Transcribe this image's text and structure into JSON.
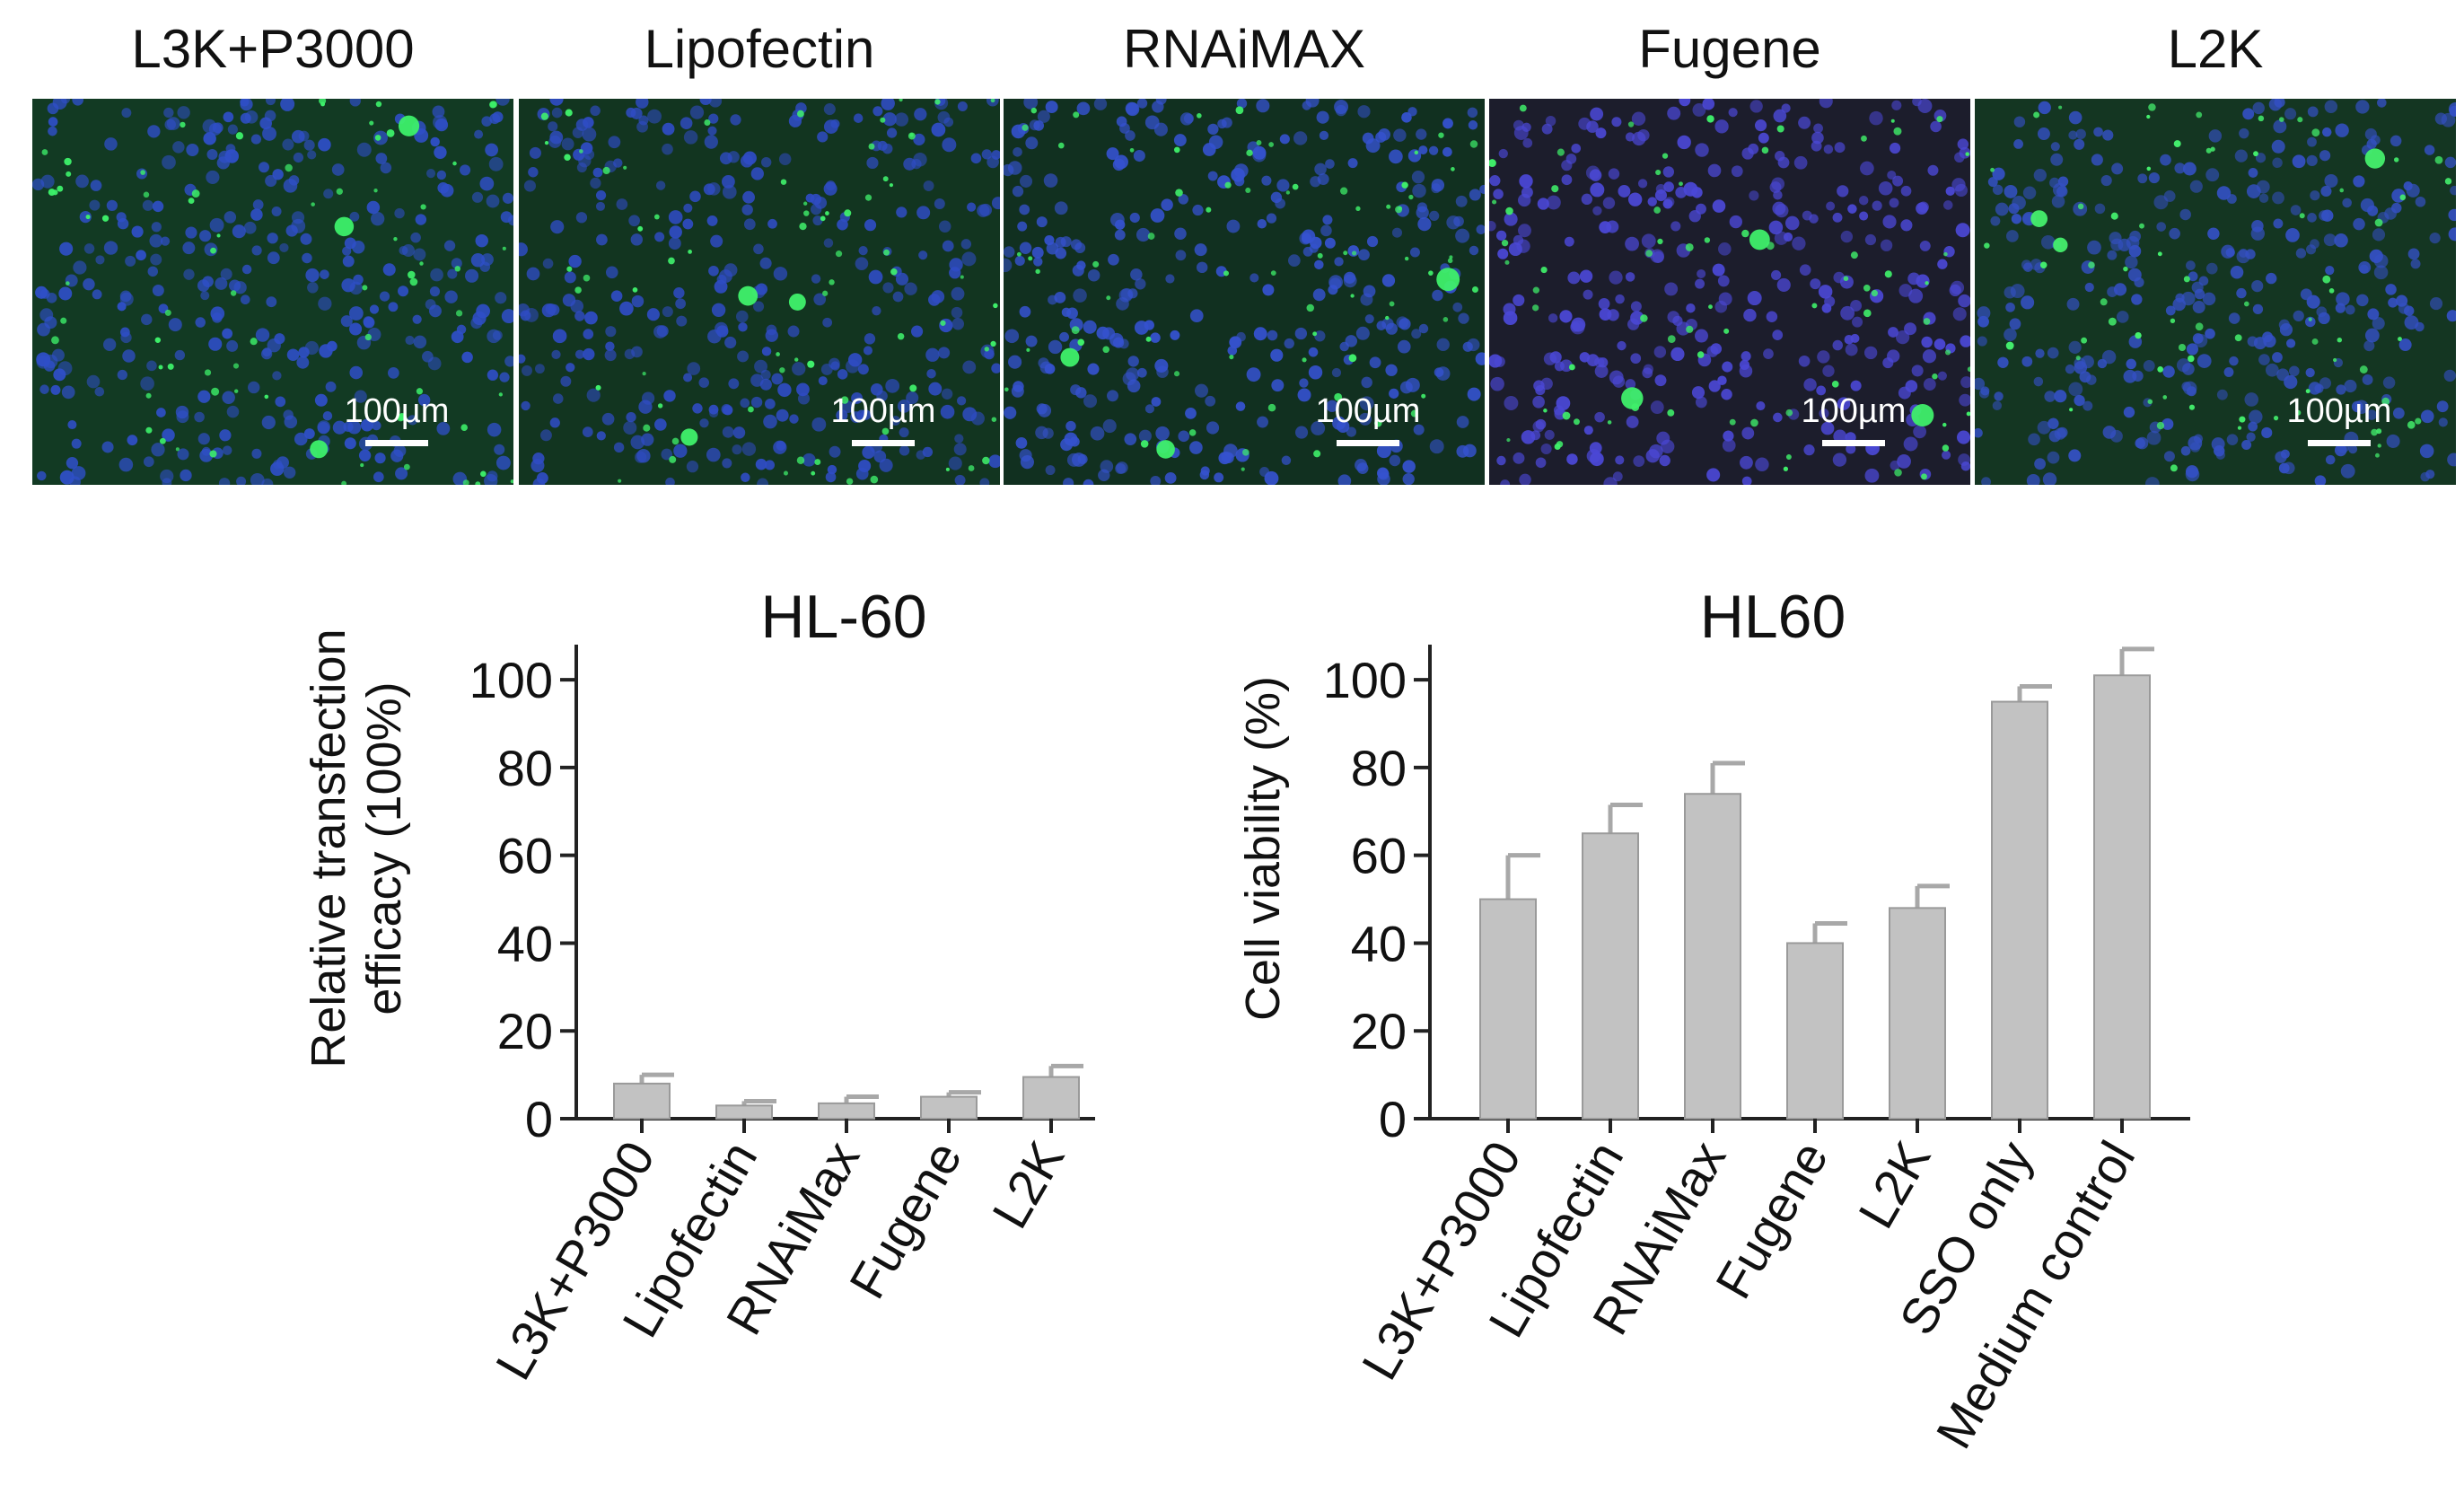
{
  "micrographs": [
    {
      "label": "L3K+P3000",
      "scale_bar": "100µm",
      "bg": "#123a23",
      "cell_color": "#2f4fc8",
      "spot_color": "#3df06a",
      "seed": 11
    },
    {
      "label": "Lipofectin",
      "scale_bar": "100µm",
      "bg": "#123520",
      "cell_color": "#2f4cc4",
      "spot_color": "#40f26c",
      "seed": 23
    },
    {
      "label": "RNAiMAX",
      "scale_bar": "100µm",
      "bg": "#113020",
      "cell_color": "#3552cf",
      "spot_color": "#3ff06a",
      "seed": 37
    },
    {
      "label": "Fugene",
      "scale_bar": "100µm",
      "bg": "#1c1d2c",
      "cell_color": "#4b48d6",
      "spot_color": "#3fef6a",
      "seed": 41
    },
    {
      "label": "L2K",
      "scale_bar": "100µm",
      "bg": "#143622",
      "cell_color": "#3450c4",
      "spot_color": "#44f06d",
      "seed": 53
    }
  ],
  "chart_data": [
    {
      "type": "bar",
      "title": "HL-60",
      "xlabel": "",
      "ylabel": "Relative transfection efficacy (100%)",
      "ylabel_lines": [
        "Relative transfection",
        "efficacy (100%)"
      ],
      "categories": [
        "L3K+P3000",
        "Lipofectin",
        "RNAiMax",
        "Fugene",
        "L2K"
      ],
      "values": [
        8,
        3,
        3.5,
        5,
        9.5
      ],
      "errors": [
        2,
        1,
        1.5,
        1,
        2.5
      ],
      "yticks": [
        0,
        20,
        40,
        60,
        80,
        100
      ],
      "ylim": [
        0,
        108
      ],
      "grid": false,
      "bar_color": "#c2c2c2"
    },
    {
      "type": "bar",
      "title": "HL60",
      "xlabel": "",
      "ylabel": "Cell viability (%)",
      "ylabel_lines": [
        "Cell viability (%)"
      ],
      "categories": [
        "L3K+P3000",
        "Lipofectin",
        "RNAiMax",
        "Fugene",
        "L2K",
        "SSO only",
        "Medium control"
      ],
      "values": [
        50,
        65,
        74,
        40,
        48,
        95,
        101
      ],
      "errors": [
        10,
        6.5,
        7,
        4.5,
        5,
        3.5,
        6
      ],
      "yticks": [
        0,
        20,
        40,
        60,
        80,
        100
      ],
      "ylim": [
        0,
        108
      ],
      "grid": false,
      "bar_color": "#c2c2c2"
    }
  ]
}
